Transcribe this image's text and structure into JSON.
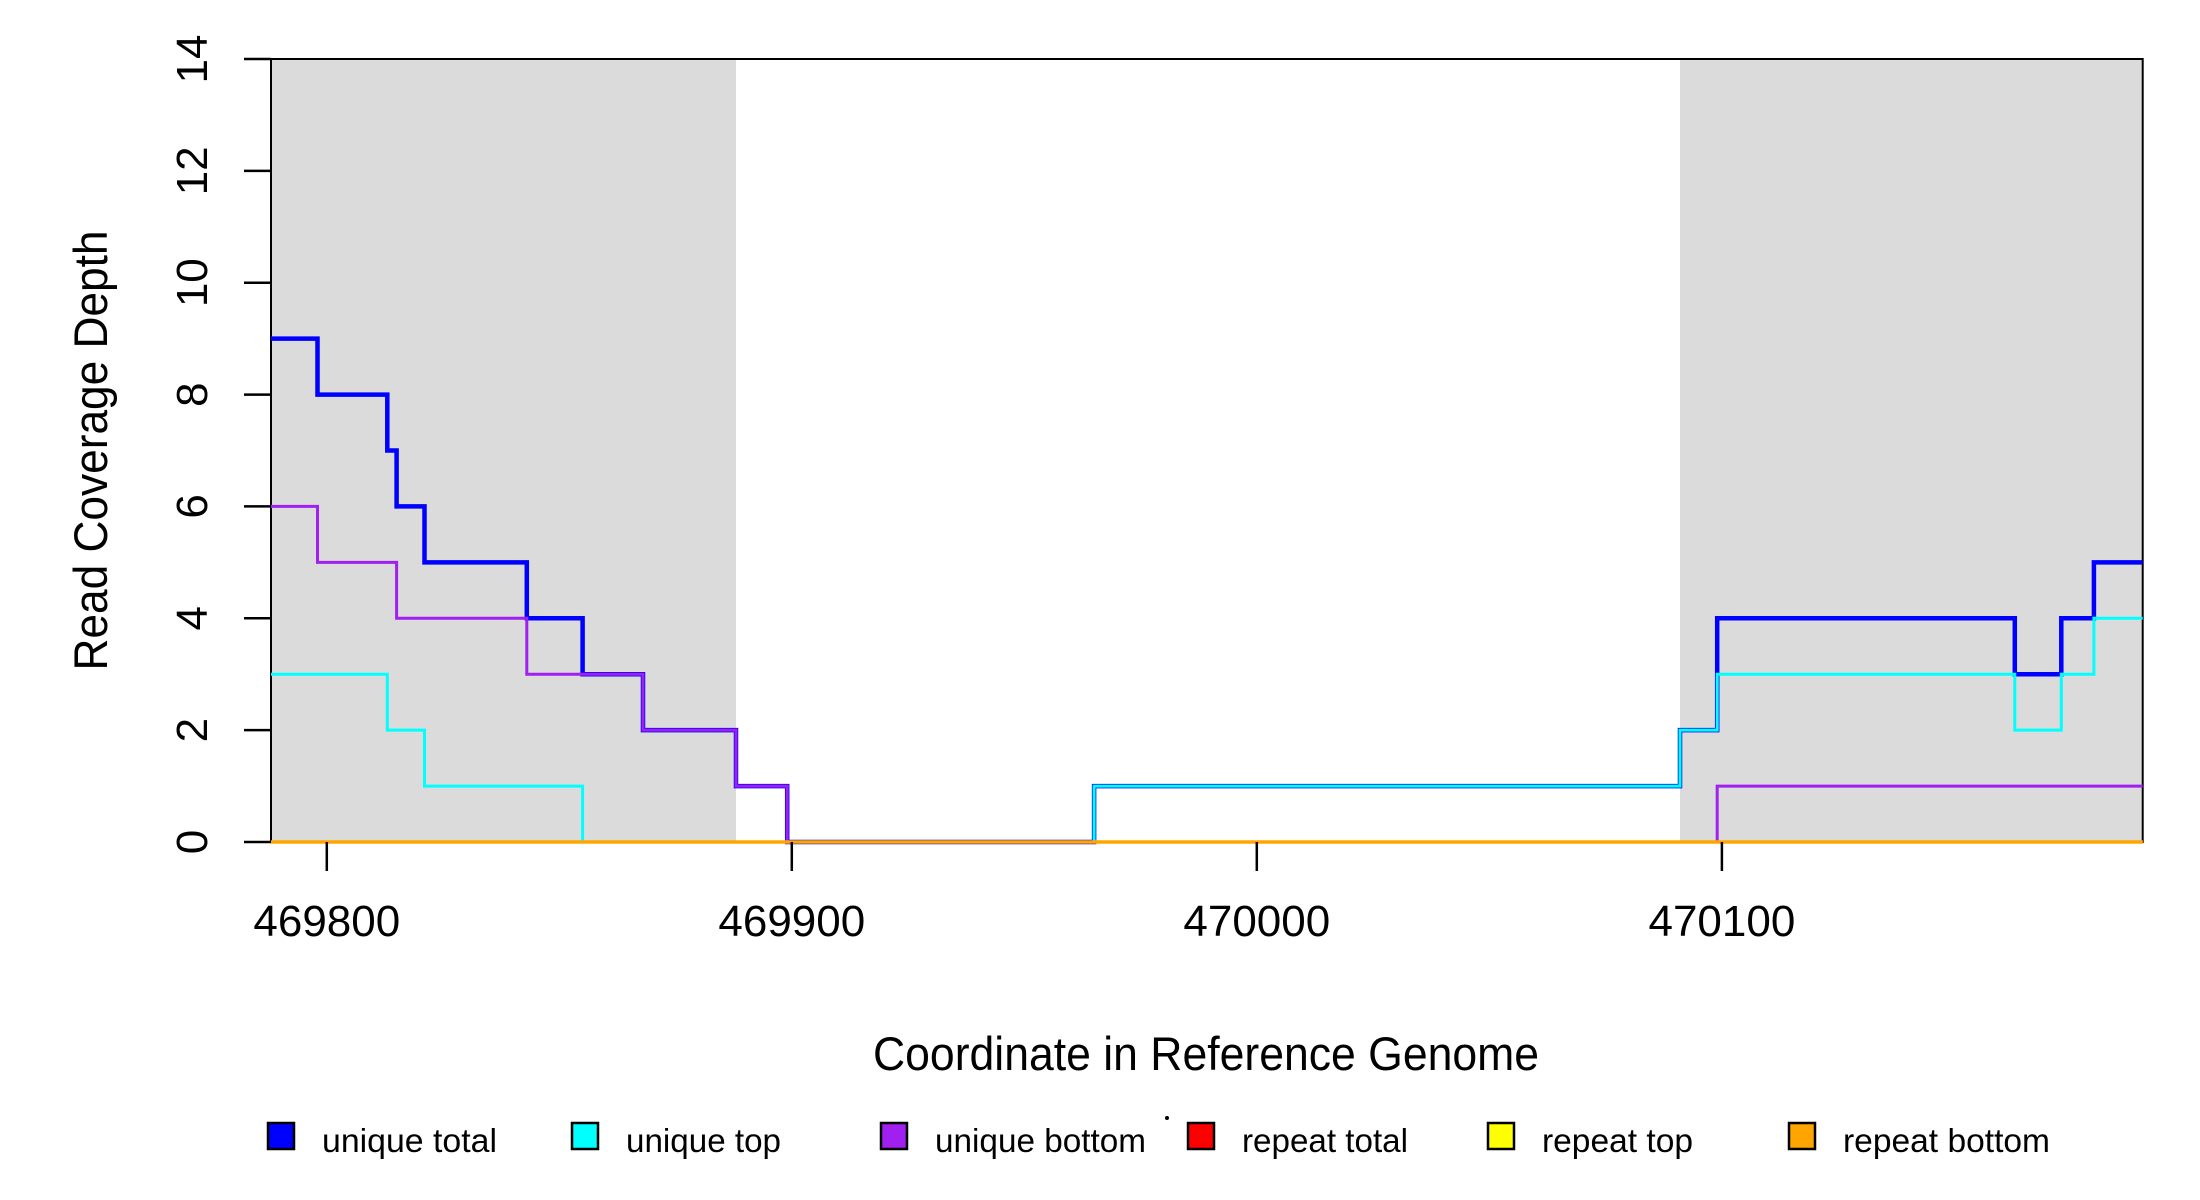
{
  "figure": {
    "background": "#ffffff",
    "plot_background": "#ffffff",
    "band_color": "#DBDBDB",
    "box_color": "#000000"
  },
  "chart_data": {
    "type": "line",
    "line_style": "step-after",
    "title": "",
    "xlabel": "Coordinate in Reference Genome",
    "ylabel": "Read Coverage Depth",
    "xlim": [
      469788,
      470190.5
    ],
    "ylim": [
      0,
      14
    ],
    "grid": false,
    "legend_position": "bottom",
    "x_ticks": [
      469800,
      469900,
      470000,
      470100
    ],
    "x_tick_labels": [
      "469800",
      "469900",
      "470000",
      "470100"
    ],
    "y_ticks": [
      0,
      2,
      4,
      6,
      8,
      10,
      12,
      14
    ],
    "y_tick_labels": [
      "0",
      "2",
      "4",
      "6",
      "8",
      "10",
      "12",
      "14"
    ],
    "highlight_bands": [
      {
        "x0": 469788,
        "x1": 469888
      },
      {
        "x0": 470091,
        "x1": 470190.5
      }
    ],
    "series": [
      {
        "name": "unique total",
        "color": "#0000FF",
        "width": 4.5,
        "points": [
          [
            469788,
            9
          ],
          [
            469798,
            8
          ],
          [
            469813,
            7
          ],
          [
            469815,
            6
          ],
          [
            469821,
            5
          ],
          [
            469843,
            4
          ],
          [
            469855,
            3
          ],
          [
            469868,
            2
          ],
          [
            469888,
            1
          ],
          [
            469899,
            0
          ],
          [
            469965,
            1
          ],
          [
            470091,
            2
          ],
          [
            470099,
            4
          ],
          [
            470163,
            3
          ],
          [
            470173,
            4
          ],
          [
            470180,
            5
          ]
        ]
      },
      {
        "name": "unique top",
        "color": "#00FFFF",
        "width": 3,
        "points": [
          [
            469788,
            3
          ],
          [
            469813,
            2
          ],
          [
            469821,
            1
          ],
          [
            469855,
            0
          ],
          [
            469965,
            1
          ],
          [
            470091,
            2
          ],
          [
            470099,
            3
          ],
          [
            470163,
            2
          ],
          [
            470173,
            3
          ],
          [
            470180,
            4
          ]
        ]
      },
      {
        "name": "unique bottom",
        "color": "#A020F0",
        "width": 3,
        "points": [
          [
            469788,
            6
          ],
          [
            469798,
            5
          ],
          [
            469815,
            4
          ],
          [
            469843,
            3
          ],
          [
            469868,
            2
          ],
          [
            469888,
            1
          ],
          [
            469899,
            0
          ],
          [
            470099,
            1
          ]
        ]
      },
      {
        "name": "repeat total",
        "color": "#FF0000",
        "width": 3,
        "points": [
          [
            469788,
            0
          ]
        ]
      },
      {
        "name": "repeat top",
        "color": "#FFFF00",
        "width": 3,
        "points": [
          [
            469788,
            0
          ]
        ]
      },
      {
        "name": "repeat bottom",
        "color": "#FFA500",
        "width": 3.5,
        "points": [
          [
            469788,
            0
          ]
        ]
      }
    ]
  },
  "legend": {
    "items": [
      {
        "label": "unique total",
        "color": "#0000FF"
      },
      {
        "label": "unique top",
        "color": "#00FFFF"
      },
      {
        "label": "unique bottom",
        "color": "#A020F0"
      },
      {
        "label": "repeat total",
        "color": "#FF0000"
      },
      {
        "label": "repeat top",
        "color": "#FFFF00"
      },
      {
        "label": "repeat bottom",
        "color": "#FFA500"
      }
    ]
  }
}
